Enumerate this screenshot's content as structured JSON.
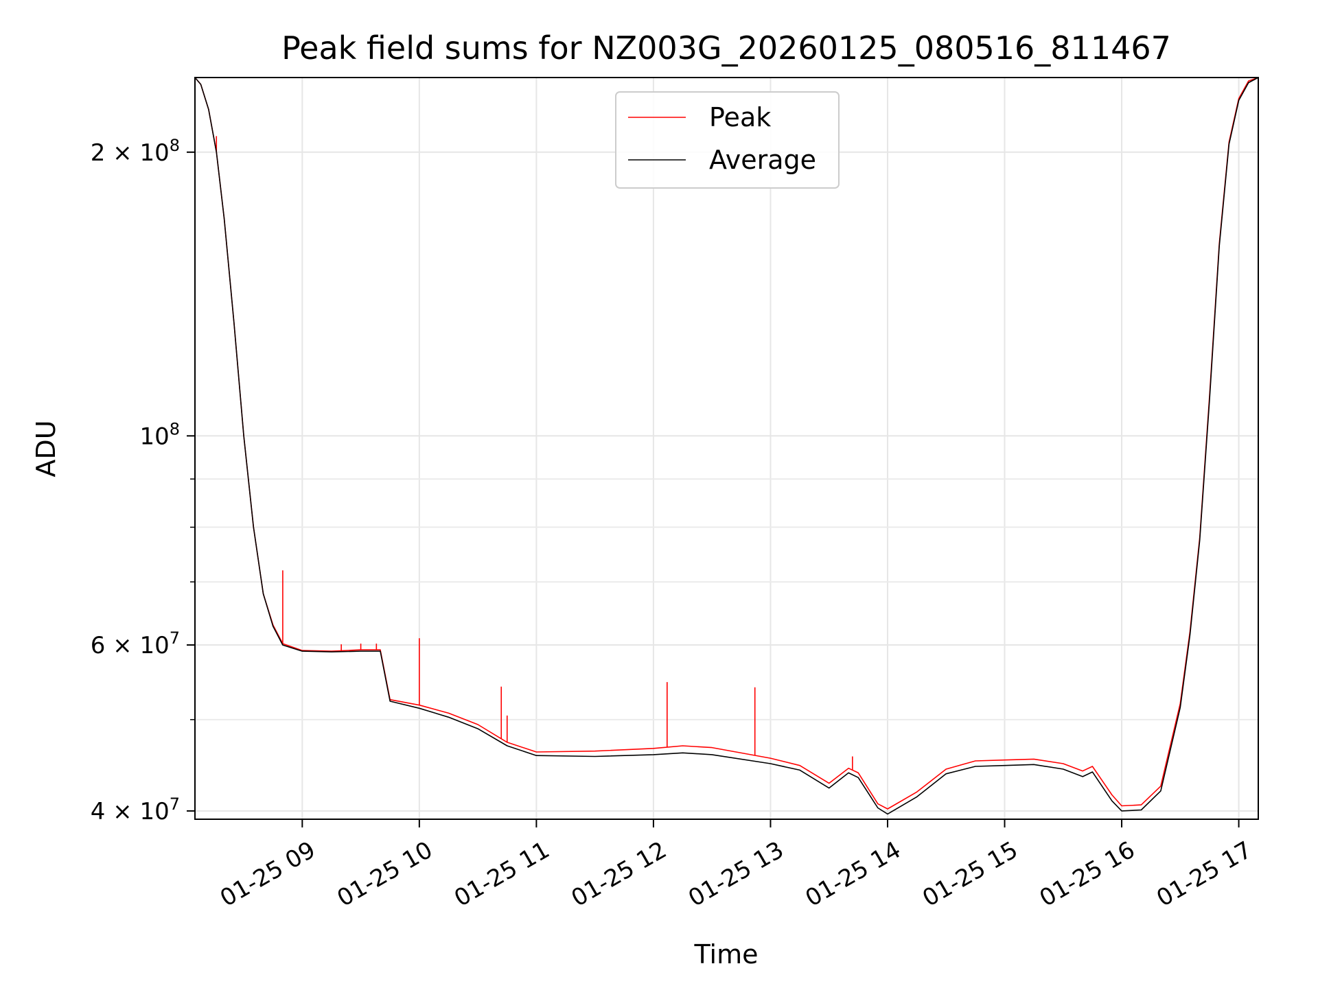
{
  "chart_data": {
    "type": "line",
    "title": "Peak field sums for NZ003G_20260125_080516_811467",
    "xlabel": "Time",
    "ylabel": "ADU",
    "yscale": "log",
    "xlim": [
      "2026-01-25 08:05",
      "2026-01-25 17:10"
    ],
    "ylim": [
      39200000,
      240000000
    ],
    "grid": true,
    "legend_position": "top-center",
    "x_ticks": [
      {
        "t": "2026-01-25 09:00",
        "label": "01-25 09"
      },
      {
        "t": "2026-01-25 10:00",
        "label": "01-25 10"
      },
      {
        "t": "2026-01-25 11:00",
        "label": "01-25 11"
      },
      {
        "t": "2026-01-25 12:00",
        "label": "01-25 12"
      },
      {
        "t": "2026-01-25 13:00",
        "label": "01-25 13"
      },
      {
        "t": "2026-01-25 14:00",
        "label": "01-25 14"
      },
      {
        "t": "2026-01-25 15:00",
        "label": "01-25 15"
      },
      {
        "t": "2026-01-25 16:00",
        "label": "01-25 16"
      },
      {
        "t": "2026-01-25 17:00",
        "label": "01-25 17"
      }
    ],
    "y_ticks": [
      {
        "value": 200000000,
        "base": "2 × 10",
        "exp": "8"
      },
      {
        "value": 100000000,
        "base": "10",
        "exp": "8"
      },
      {
        "value": 60000000,
        "base": "6 × 10",
        "exp": "7"
      },
      {
        "value": 40000000,
        "base": "4 × 10",
        "exp": "7"
      }
    ],
    "y_minor_ticks": [
      50000000,
      70000000,
      80000000,
      90000000
    ],
    "series": [
      {
        "name": "Peak",
        "color": "#ff0000",
        "points": [
          [
            "2026-01-25 08:05",
            240000000
          ],
          [
            "2026-01-25 08:08",
            236000000
          ],
          [
            "2026-01-25 08:12",
            222000000
          ],
          [
            "2026-01-25 08:16",
            200000000
          ],
          [
            "2026-01-25 08:20",
            170000000
          ],
          [
            "2026-01-25 08:25",
            132000000
          ],
          [
            "2026-01-25 08:30",
            100000000
          ],
          [
            "2026-01-25 08:35",
            80000000
          ],
          [
            "2026-01-25 08:40",
            68000000
          ],
          [
            "2026-01-25 08:45",
            63000000
          ],
          [
            "2026-01-25 08:50",
            60200000
          ],
          [
            "2026-01-25 09:00",
            59200000
          ],
          [
            "2026-01-25 09:15",
            59100000
          ],
          [
            "2026-01-25 09:30",
            59300000
          ],
          [
            "2026-01-25 09:40",
            59300000
          ],
          [
            "2026-01-25 09:45",
            52500000
          ],
          [
            "2026-01-25 10:00",
            51800000
          ],
          [
            "2026-01-25 10:15",
            50800000
          ],
          [
            "2026-01-25 10:30",
            49400000
          ],
          [
            "2026-01-25 10:45",
            47300000
          ],
          [
            "2026-01-25 11:00",
            46200000
          ],
          [
            "2026-01-25 11:30",
            46300000
          ],
          [
            "2026-01-25 12:00",
            46600000
          ],
          [
            "2026-01-25 12:15",
            46900000
          ],
          [
            "2026-01-25 12:30",
            46700000
          ],
          [
            "2026-01-25 13:00",
            45500000
          ],
          [
            "2026-01-25 13:15",
            44700000
          ],
          [
            "2026-01-25 13:30",
            42800000
          ],
          [
            "2026-01-25 13:40",
            44400000
          ],
          [
            "2026-01-25 13:45",
            43900000
          ],
          [
            "2026-01-25 13:55",
            40700000
          ],
          [
            "2026-01-25 14:00",
            40200000
          ],
          [
            "2026-01-25 14:15",
            41900000
          ],
          [
            "2026-01-25 14:30",
            44300000
          ],
          [
            "2026-01-25 14:45",
            45200000
          ],
          [
            "2026-01-25 15:00",
            45300000
          ],
          [
            "2026-01-25 15:15",
            45400000
          ],
          [
            "2026-01-25 15:30",
            44900000
          ],
          [
            "2026-01-25 15:40",
            44100000
          ],
          [
            "2026-01-25 15:45",
            44600000
          ],
          [
            "2026-01-25 15:55",
            41600000
          ],
          [
            "2026-01-25 16:00",
            40500000
          ],
          [
            "2026-01-25 16:10",
            40600000
          ],
          [
            "2026-01-25 16:20",
            42500000
          ],
          [
            "2026-01-25 16:30",
            52000000
          ],
          [
            "2026-01-25 16:35",
            62000000
          ],
          [
            "2026-01-25 16:40",
            78000000
          ],
          [
            "2026-01-25 16:45",
            110000000
          ],
          [
            "2026-01-25 16:50",
            160000000
          ],
          [
            "2026-01-25 16:55",
            205000000
          ],
          [
            "2026-01-25 17:00",
            228000000
          ],
          [
            "2026-01-25 17:05",
            238000000
          ],
          [
            "2026-01-25 17:10",
            240000000
          ]
        ],
        "spikes": [
          [
            "2026-01-25 08:16",
            208000000
          ],
          [
            "2026-01-25 08:50",
            72000000
          ],
          [
            "2026-01-25 09:20",
            60100000
          ],
          [
            "2026-01-25 09:30",
            60200000
          ],
          [
            "2026-01-25 09:38",
            60200000
          ],
          [
            "2026-01-25 10:00",
            61000000
          ],
          [
            "2026-01-25 10:42",
            54200000
          ],
          [
            "2026-01-25 10:45",
            50500000
          ],
          [
            "2026-01-25 12:07",
            54800000
          ],
          [
            "2026-01-25 12:52",
            54100000
          ],
          [
            "2026-01-25 13:42",
            45700000
          ]
        ]
      },
      {
        "name": "Average",
        "color": "#000000",
        "points": [
          [
            "2026-01-25 08:05",
            240000000
          ],
          [
            "2026-01-25 08:08",
            236000000
          ],
          [
            "2026-01-25 08:12",
            222000000
          ],
          [
            "2026-01-25 08:16",
            200000000
          ],
          [
            "2026-01-25 08:20",
            170000000
          ],
          [
            "2026-01-25 08:25",
            132000000
          ],
          [
            "2026-01-25 08:30",
            100000000
          ],
          [
            "2026-01-25 08:35",
            80000000
          ],
          [
            "2026-01-25 08:40",
            68000000
          ],
          [
            "2026-01-25 08:45",
            62800000
          ],
          [
            "2026-01-25 08:50",
            60000000
          ],
          [
            "2026-01-25 09:00",
            59100000
          ],
          [
            "2026-01-25 09:15",
            59000000
          ],
          [
            "2026-01-25 09:30",
            59100000
          ],
          [
            "2026-01-25 09:40",
            59100000
          ],
          [
            "2026-01-25 09:45",
            52300000
          ],
          [
            "2026-01-25 10:00",
            51400000
          ],
          [
            "2026-01-25 10:15",
            50300000
          ],
          [
            "2026-01-25 10:30",
            48900000
          ],
          [
            "2026-01-25 10:45",
            46900000
          ],
          [
            "2026-01-25 11:00",
            45800000
          ],
          [
            "2026-01-25 11:30",
            45700000
          ],
          [
            "2026-01-25 12:00",
            45900000
          ],
          [
            "2026-01-25 12:15",
            46100000
          ],
          [
            "2026-01-25 12:30",
            45900000
          ],
          [
            "2026-01-25 13:00",
            44900000
          ],
          [
            "2026-01-25 13:15",
            44200000
          ],
          [
            "2026-01-25 13:30",
            42300000
          ],
          [
            "2026-01-25 13:40",
            43900000
          ],
          [
            "2026-01-25 13:45",
            43400000
          ],
          [
            "2026-01-25 13:55",
            40300000
          ],
          [
            "2026-01-25 14:00",
            39700000
          ],
          [
            "2026-01-25 14:15",
            41400000
          ],
          [
            "2026-01-25 14:30",
            43800000
          ],
          [
            "2026-01-25 14:45",
            44600000
          ],
          [
            "2026-01-25 15:00",
            44700000
          ],
          [
            "2026-01-25 15:15",
            44800000
          ],
          [
            "2026-01-25 15:30",
            44300000
          ],
          [
            "2026-01-25 15:40",
            43500000
          ],
          [
            "2026-01-25 15:45",
            44000000
          ],
          [
            "2026-01-25 15:55",
            41000000
          ],
          [
            "2026-01-25 16:00",
            40000000
          ],
          [
            "2026-01-25 16:10",
            40100000
          ],
          [
            "2026-01-25 16:20",
            42000000
          ],
          [
            "2026-01-25 16:30",
            51500000
          ],
          [
            "2026-01-25 16:35",
            61500000
          ],
          [
            "2026-01-25 16:40",
            77500000
          ],
          [
            "2026-01-25 16:45",
            109000000
          ],
          [
            "2026-01-25 16:50",
            159000000
          ],
          [
            "2026-01-25 16:55",
            204000000
          ],
          [
            "2026-01-25 17:00",
            227000000
          ],
          [
            "2026-01-25 17:05",
            237000000
          ],
          [
            "2026-01-25 17:10",
            240000000
          ]
        ]
      }
    ]
  }
}
